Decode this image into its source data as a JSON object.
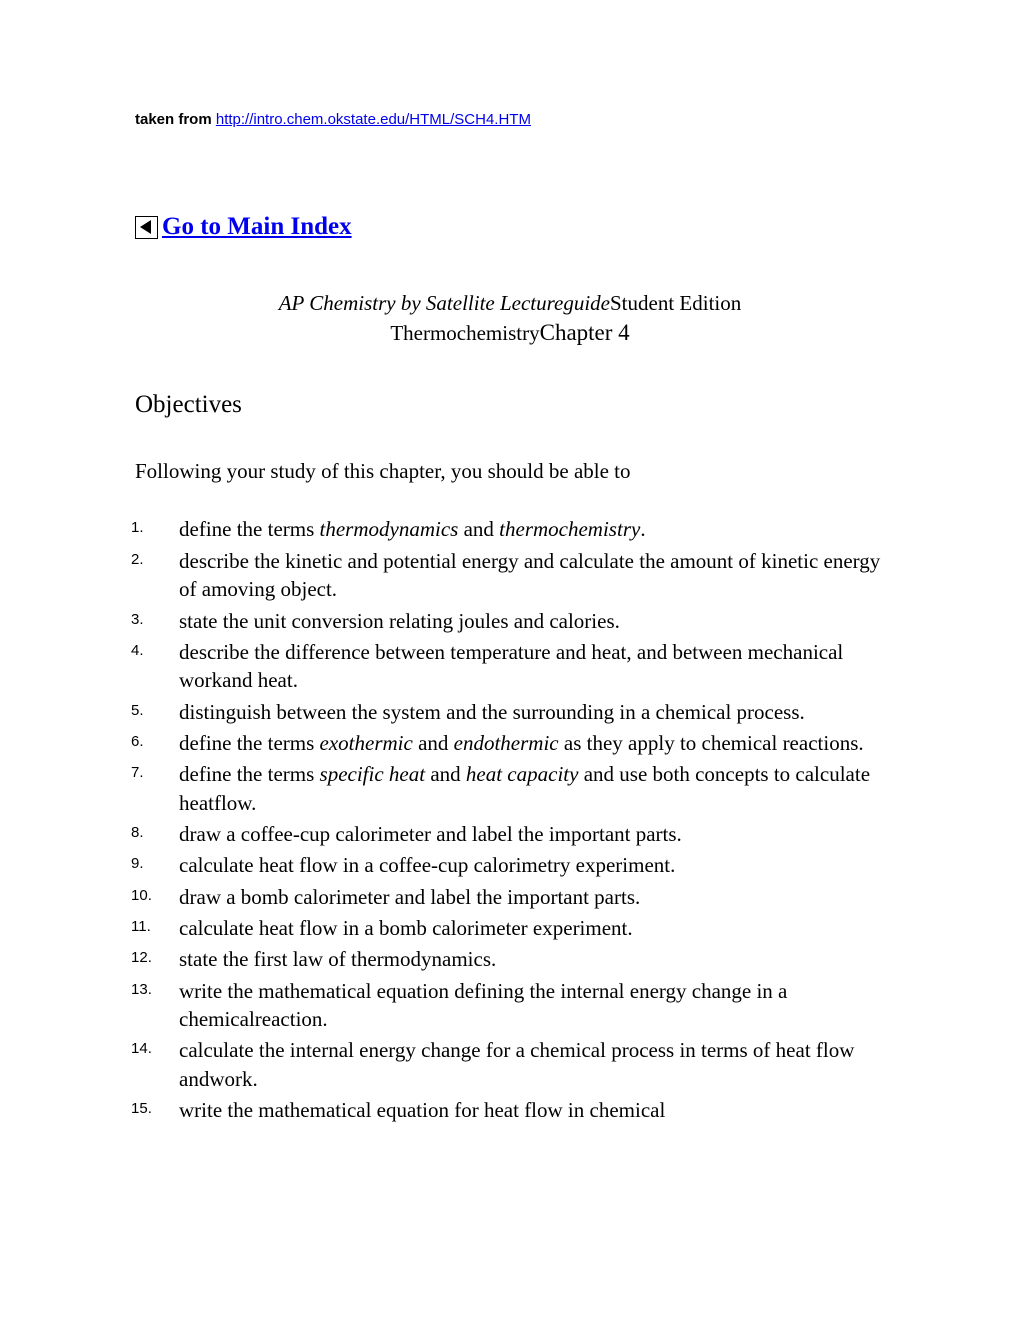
{
  "source": {
    "prefix": "taken from ",
    "url": "http://intro.chem.okstate.edu/HTML/SCH4.HTM"
  },
  "mainIndex": {
    "label": "Go to Main Index"
  },
  "title": {
    "italic": "AP Chemistry by Satellite Lectureguide",
    "edition": "Student Edition",
    "subject": "Thermochemistry",
    "chapter": "Chapter 4"
  },
  "objectivesHeading": "Objectives",
  "following": "Following your study of this chapter, you should be able to",
  "items": [
    {
      "pre": "define the terms ",
      "em1": "thermodynamics",
      "mid": " and ",
      "em2": "thermochemistry",
      "post": "."
    },
    {
      "text": "describe the kinetic and potential energy and calculate the amount of kinetic energy of amoving object."
    },
    {
      "text": "state the unit conversion relating joules and calories."
    },
    {
      "text": "describe the difference between temperature and heat, and between mechanical workand heat."
    },
    {
      "text": "distinguish between the system and the surrounding in a chemical process."
    },
    {
      "pre": "define the terms ",
      "em1": "exothermic",
      "mid": " and ",
      "em2": "endothermic",
      "post": " as they apply to chemical reactions."
    },
    {
      "pre": "define the terms ",
      "em1": "specific heat",
      "mid": " and ",
      "em2": "heat capacity",
      "post": " and use both concepts to calculate heatflow."
    },
    {
      "text": "draw a coffee-cup calorimeter and label the important parts."
    },
    {
      "text": "calculate heat flow in a coffee-cup calorimetry experiment."
    },
    {
      "text": "draw a bomb calorimeter and label the important parts."
    },
    {
      "text": "calculate heat flow in a bomb calorimeter experiment."
    },
    {
      "text": "state the first law of thermodynamics."
    },
    {
      "text": "write the mathematical equation defining the internal energy change in a chemicalreaction."
    },
    {
      "text": "calculate the internal energy change for a chemical process in terms of heat flow andwork."
    },
    {
      "text": "write the mathematical equation for heat flow in chemical"
    }
  ]
}
